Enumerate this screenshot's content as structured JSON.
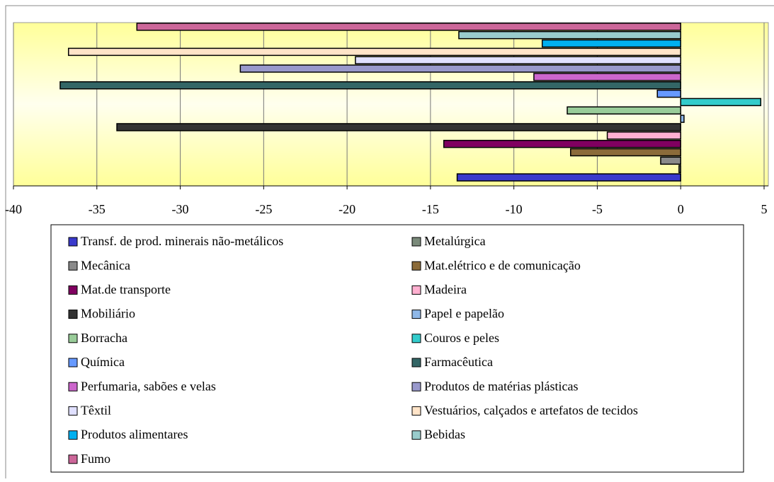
{
  "chart_data": {
    "type": "bar",
    "orientation": "horizontal",
    "xlim": [
      -40,
      5
    ],
    "xticks": [
      -40,
      -35,
      -30,
      -25,
      -20,
      -15,
      -10,
      -5,
      0,
      5
    ],
    "grid": true,
    "legend": "bottom",
    "series": [
      {
        "name": "Transf. de prod. minerais não-metálicos",
        "color": "#3a3acc",
        "values": [
          -13.4
        ]
      },
      {
        "name": "Metalúrgica",
        "color": "#7a8a7a",
        "values": [
          -0.1
        ]
      },
      {
        "name": "Mecânica",
        "color": "#8a8a8a",
        "values": [
          -1.2
        ]
      },
      {
        "name": "Mat.elétrico e de comunicação",
        "color": "#8b6b3a",
        "values": [
          -6.6
        ]
      },
      {
        "name": "Mat.de transporte",
        "color": "#800060",
        "values": [
          -14.2
        ]
      },
      {
        "name": "Madeira",
        "color": "#ffb0d0",
        "values": [
          -4.4
        ]
      },
      {
        "name": "Mobiliário",
        "color": "#333333",
        "values": [
          -33.8
        ]
      },
      {
        "name": "Papel e papelão",
        "color": "#8fb8e8",
        "values": [
          0.2
        ]
      },
      {
        "name": "Borracha",
        "color": "#99cc99",
        "values": [
          -6.8
        ]
      },
      {
        "name": "Couros e peles",
        "color": "#33cccc",
        "values": [
          4.8
        ]
      },
      {
        "name": "Química",
        "color": "#6699ff",
        "values": [
          -1.4
        ]
      },
      {
        "name": "Farmacêutica",
        "color": "#336666",
        "values": [
          -37.2
        ]
      },
      {
        "name": "Perfumaria, sabões e velas",
        "color": "#cc66cc",
        "values": [
          -8.8
        ]
      },
      {
        "name": "Produtos de matérias plásticas",
        "color": "#9999cc",
        "values": [
          -26.4
        ]
      },
      {
        "name": "Têxtil",
        "color": "#e0e0ff",
        "values": [
          -19.5
        ]
      },
      {
        "name": "Vestuários, calçados e artefatos de tecidos",
        "color": "#ffe4c8",
        "values": [
          -36.7
        ]
      },
      {
        "name": "Produtos alimentares",
        "color": "#00b0f0",
        "values": [
          -8.3
        ]
      },
      {
        "name": "Bebidas",
        "color": "#99cccc",
        "values": [
          -13.3
        ]
      },
      {
        "name": "Fumo",
        "color": "#cc6699",
        "values": [
          -32.6
        ]
      }
    ]
  }
}
